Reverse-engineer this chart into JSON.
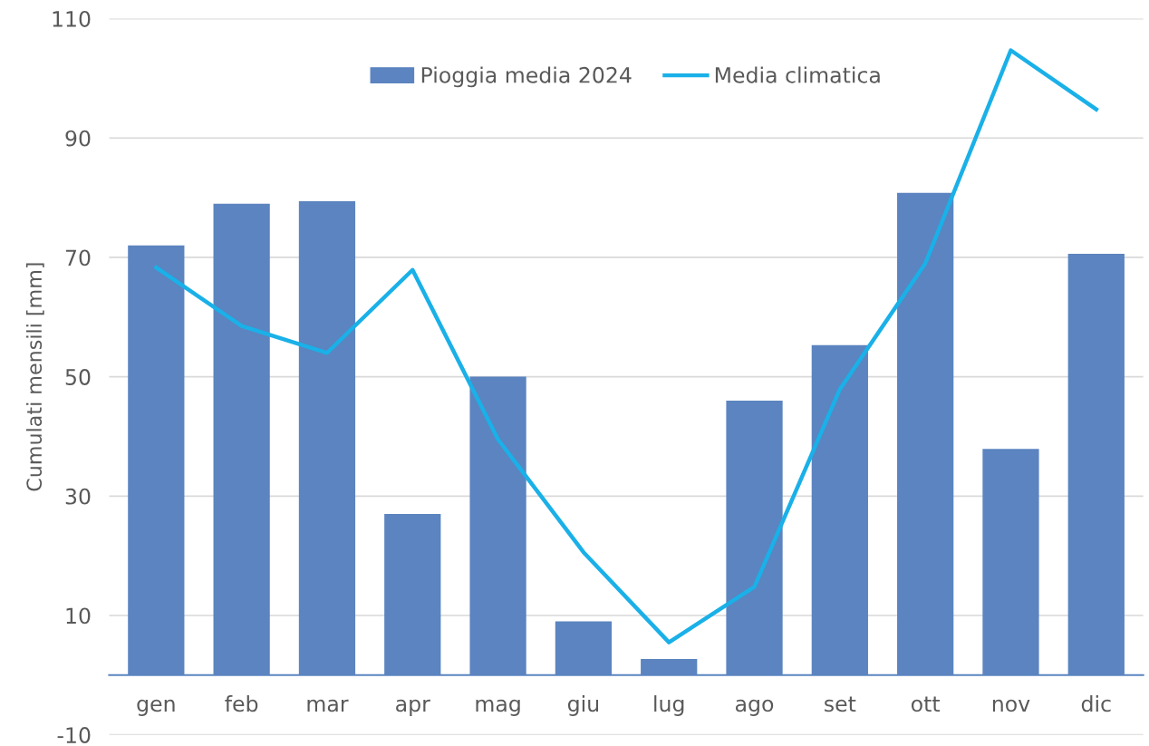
{
  "chart_data": {
    "type": "bar",
    "ylabel": "Cumulati mensili [mm]",
    "categories": [
      "gen",
      "feb",
      "mar",
      "apr",
      "mag",
      "giu",
      "lug",
      "ago",
      "set",
      "ott",
      "nov",
      "dic"
    ],
    "series": [
      {
        "name": "Pioggia media 2024",
        "color": "#5b84c0",
        "values": [
          72,
          79,
          79.4,
          27,
          50,
          9,
          2.7,
          46,
          55.3,
          80.8,
          37.9,
          70.6
        ]
      },
      {
        "name": "Media climatica",
        "type": "line",
        "color": "#1ab0e8",
        "values": [
          68.3,
          58.5,
          54,
          67.9,
          39.5,
          20.6,
          5.5,
          14.8,
          47.9,
          69,
          104.7,
          94.8
        ]
      }
    ],
    "ylim": [
      -10,
      110
    ],
    "yticks": [
      -10,
      10,
      30,
      50,
      70,
      90,
      110
    ],
    "grid": "y",
    "legend": "top",
    "marker": "none",
    "line_style": "solid"
  }
}
